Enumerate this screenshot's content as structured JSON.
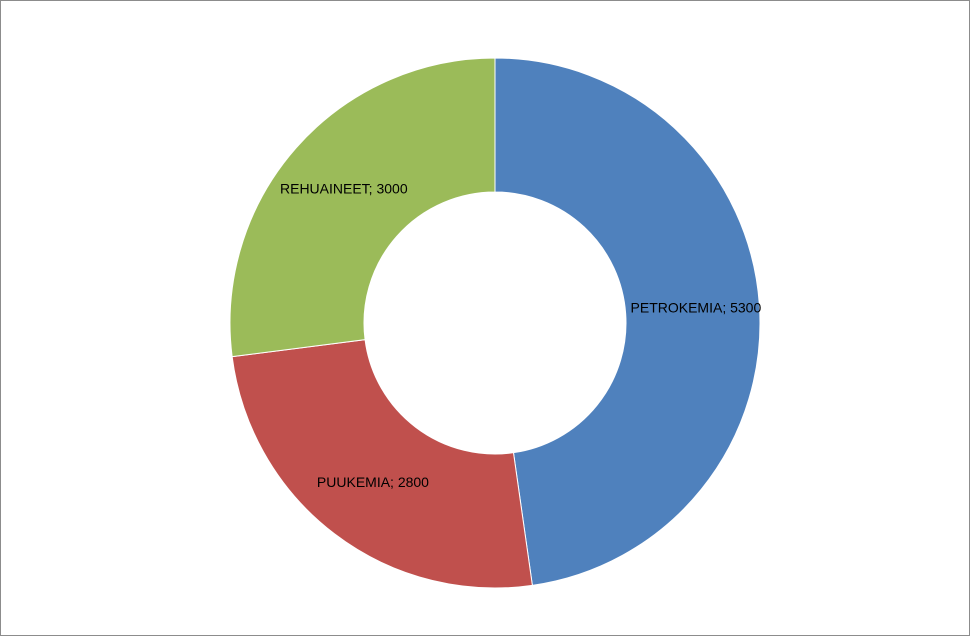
{
  "chart_data": {
    "type": "pie",
    "variant": "doughnut",
    "title": "",
    "categories": [
      "PETROKEMIA",
      "PUUKEMIA",
      "REHUAINEET"
    ],
    "values": [
      5300,
      2800,
      3000
    ],
    "labels": [
      "PETROKEMIA; 5300",
      "PUUKEMIA; 2800",
      "REHUAINEET; 3000"
    ],
    "colors": [
      "#4f81bd",
      "#c0504d",
      "#9bbb59"
    ],
    "legend": "none",
    "start_angle": "12 o'clock",
    "direction": "clockwise"
  }
}
